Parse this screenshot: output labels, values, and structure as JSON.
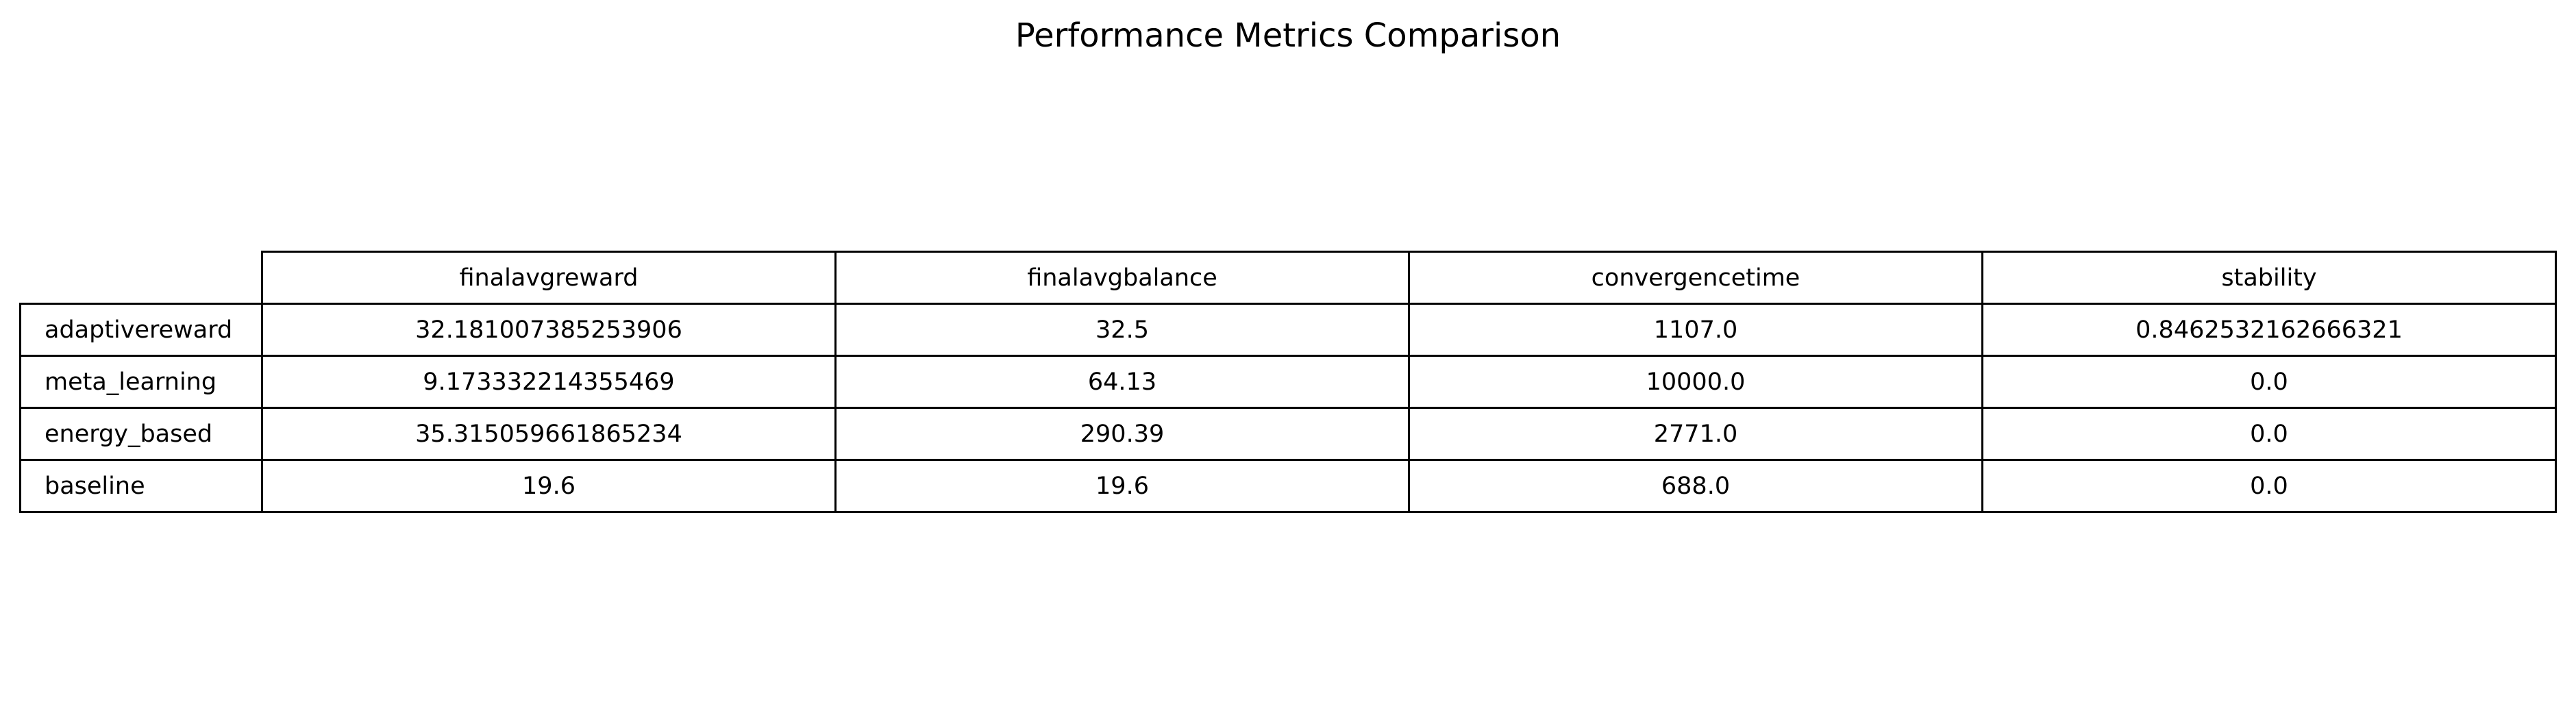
{
  "chart_data": {
    "type": "table",
    "title": "Performance Metrics Comparison",
    "columns": [
      "finalavgreward",
      "finalavgbalance",
      "convergencetime",
      "stability"
    ],
    "rows": [
      {
        "label": "adaptivereward",
        "values": [
          "32.181007385253906",
          "32.5",
          "1107.0",
          "0.8462532162666321"
        ]
      },
      {
        "label": "meta_learning",
        "values": [
          "9.173332214355469",
          "64.13",
          "10000.0",
          "0.0"
        ]
      },
      {
        "label": "energy_based",
        "values": [
          "35.315059661865234",
          "290.39",
          "2771.0",
          "0.0"
        ]
      },
      {
        "label": "baseline",
        "values": [
          "19.6",
          "19.6",
          "688.0",
          "0.0"
        ]
      }
    ]
  }
}
